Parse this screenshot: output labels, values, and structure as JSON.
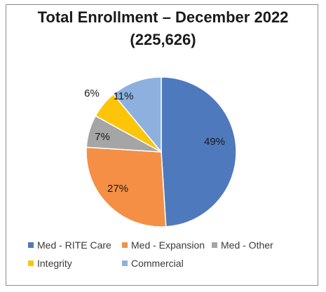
{
  "chart_data": {
    "type": "pie",
    "title": "Total Enrollment – December 2022",
    "subtitle": "(225,626)",
    "start_angle_deg": 0,
    "direction": "clockwise",
    "slices": [
      {
        "name": "Med - RITE Care",
        "value": 49,
        "label": "49%",
        "color": "#4e79bd"
      },
      {
        "name": "Med - Expansion",
        "value": 27,
        "label": "27%",
        "color": "#f48f45"
      },
      {
        "name": "Med - Other",
        "value": 7,
        "label": "7%",
        "color": "#a5a5a5"
      },
      {
        "name": "Integrity",
        "value": 6,
        "label": "6%",
        "color": "#fcc50a"
      },
      {
        "name": "Commercial",
        "value": 11,
        "label": "11%",
        "color": "#8db0de"
      }
    ],
    "legend_position": "bottom"
  }
}
